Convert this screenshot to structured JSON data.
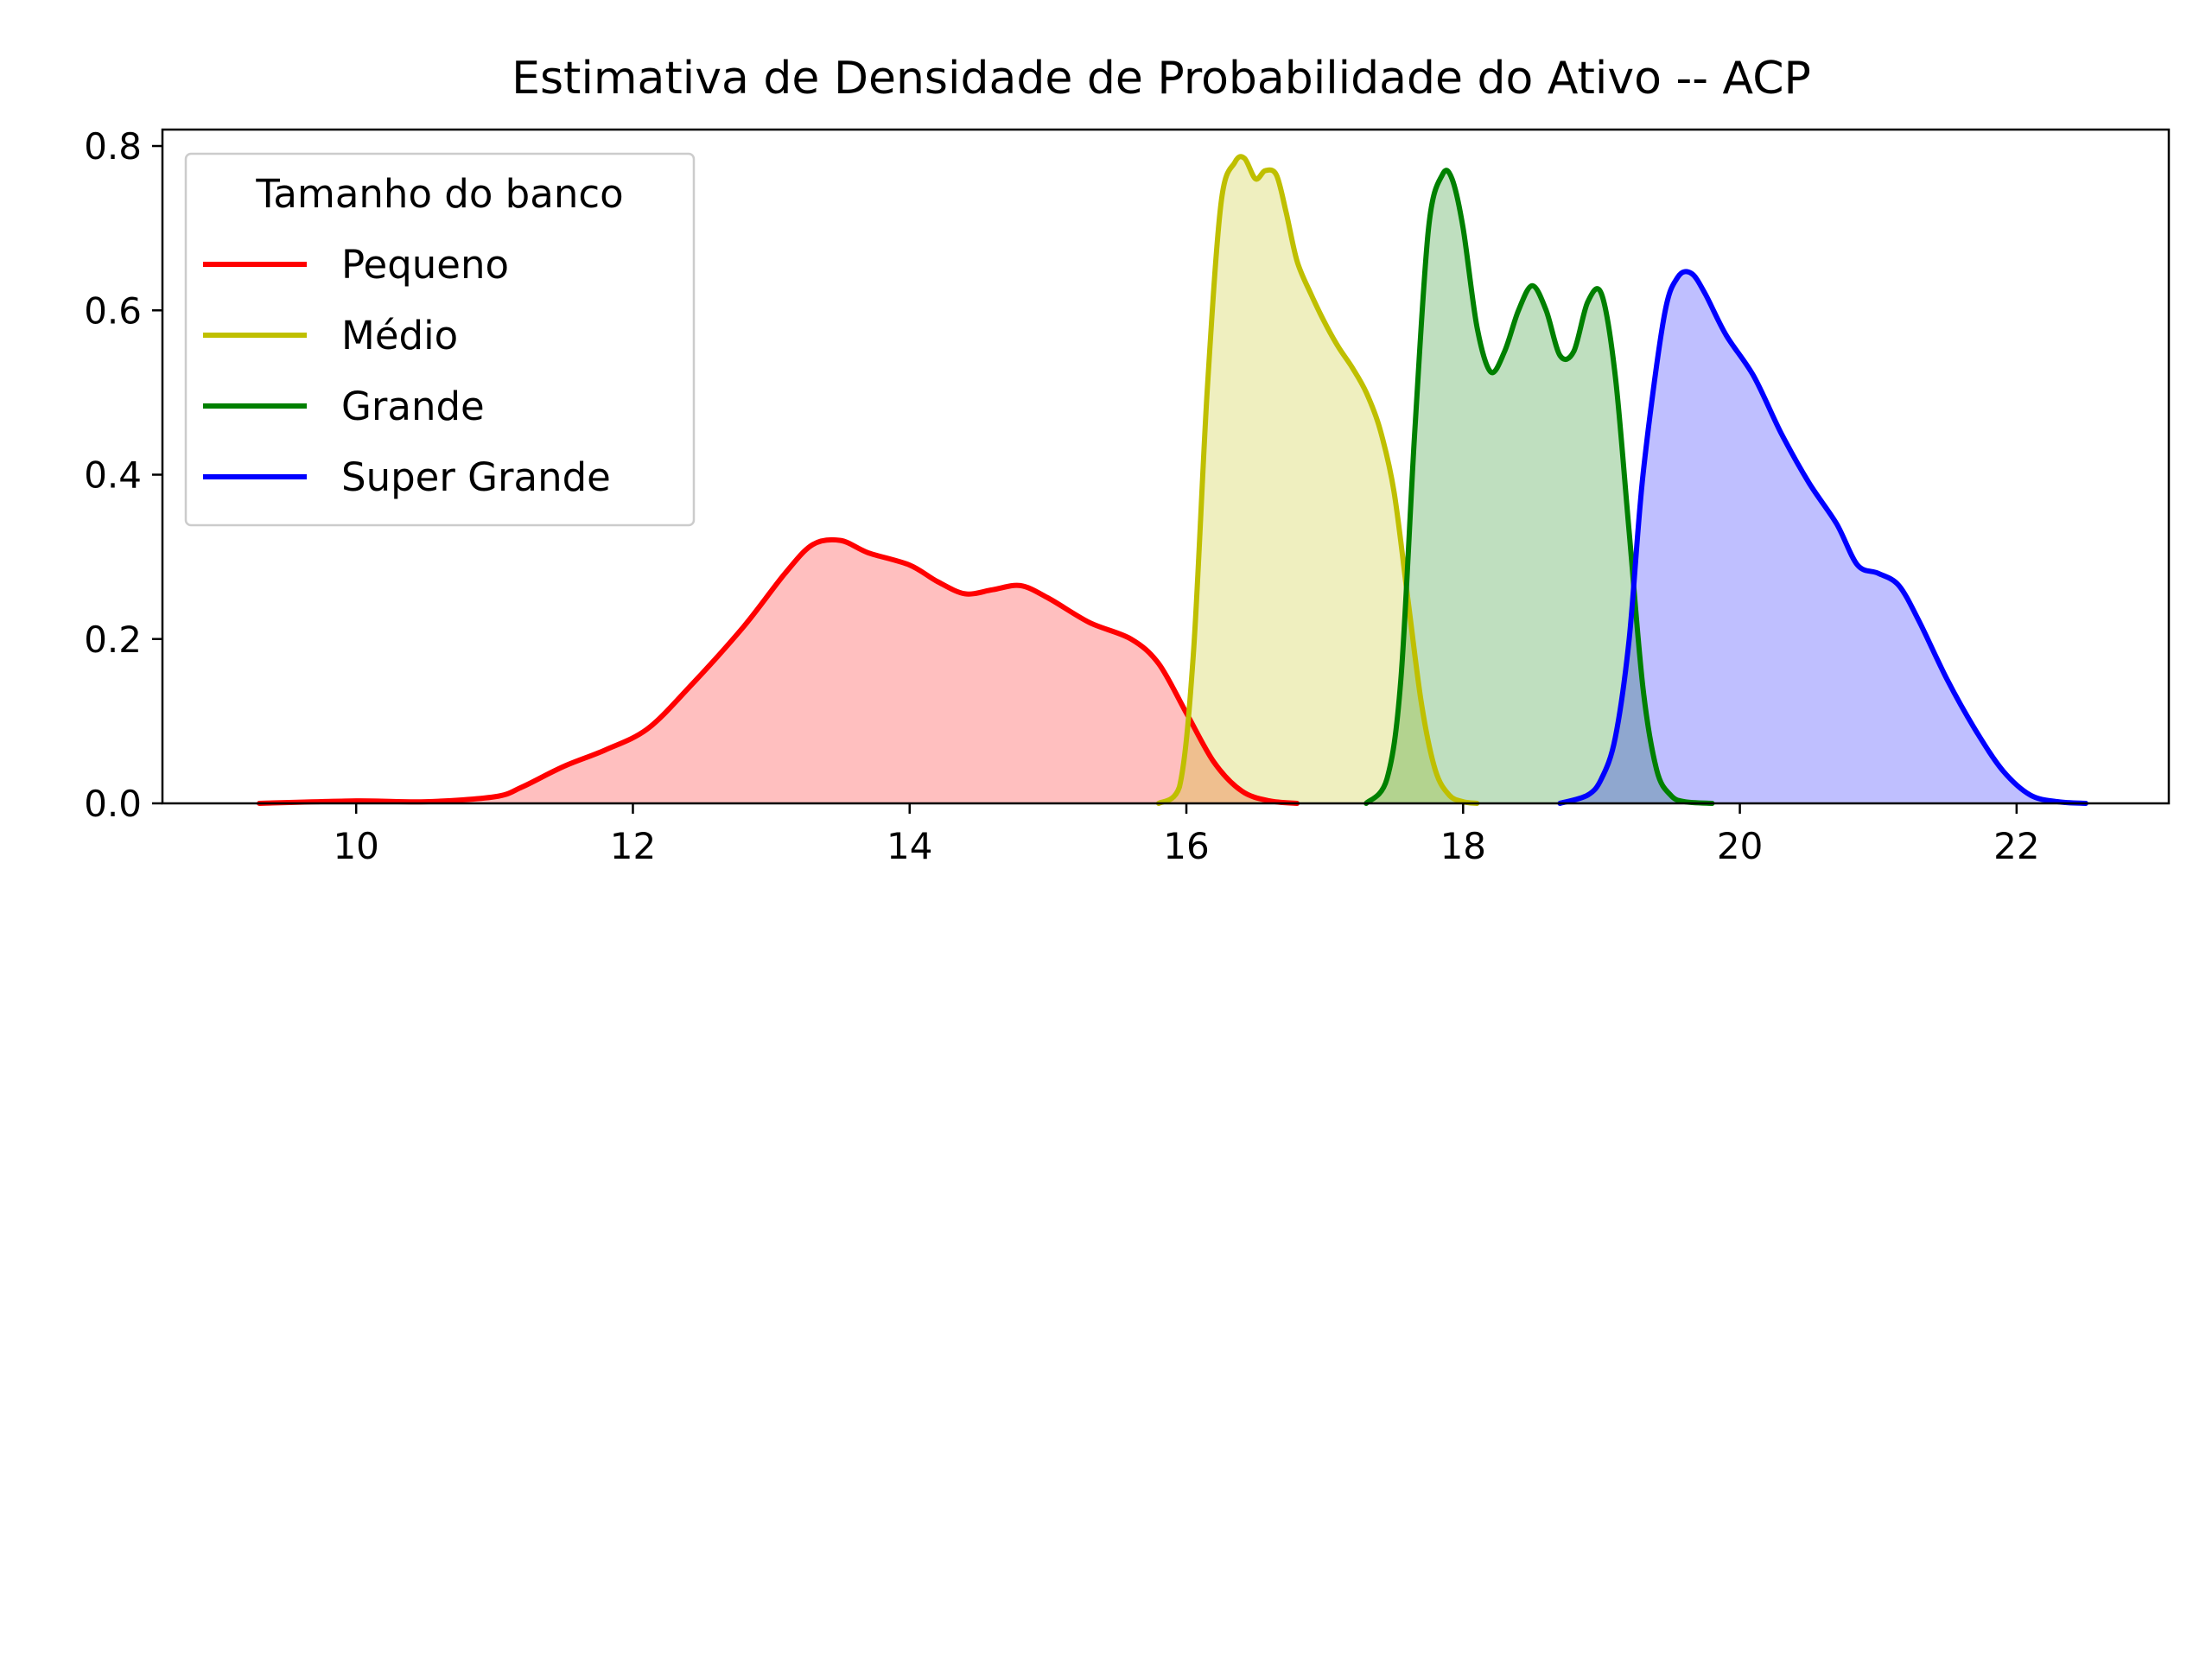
{
  "chart_data": {
    "type": "area",
    "title": "Estimativa de Densidade de Probabilidade do Ativo -- ACP",
    "xlabel": "",
    "ylabel": "",
    "xlim": [
      8.6,
      23.1
    ],
    "ylim": [
      0.0,
      0.82
    ],
    "x_ticks": [
      10,
      12,
      14,
      16,
      18,
      20,
      22
    ],
    "y_ticks": [
      0.0,
      0.2,
      0.4,
      0.6,
      0.8
    ],
    "x_tick_labels": [
      "10",
      "12",
      "14",
      "16",
      "18",
      "20",
      "22"
    ],
    "y_tick_labels": [
      "0.0",
      "0.2",
      "0.4",
      "0.6",
      "0.8"
    ],
    "grid": false,
    "legend": {
      "title": "Tamanho do banco",
      "placement": "upper-left"
    },
    "series": [
      {
        "name": "Pequeno",
        "color": "#ff0000",
        "fill": "#ffbfbf",
        "x": [
          9.3,
          10.0,
          10.5,
          11.0,
          11.2,
          11.5,
          11.8,
          12.1,
          12.4,
          12.8,
          13.1,
          13.3,
          13.5,
          13.7,
          14.0,
          14.2,
          14.4,
          14.6,
          14.8,
          15.0,
          15.3,
          15.6,
          15.8,
          16.0,
          16.2,
          16.4,
          16.6,
          16.8
        ],
        "y": [
          0.0,
          0.003,
          0.002,
          0.008,
          0.02,
          0.045,
          0.065,
          0.09,
          0.14,
          0.215,
          0.28,
          0.315,
          0.32,
          0.305,
          0.29,
          0.27,
          0.255,
          0.26,
          0.265,
          0.25,
          0.22,
          0.2,
          0.17,
          0.11,
          0.05,
          0.015,
          0.003,
          0.0
        ]
      },
      {
        "name": "Médio",
        "color": "#bfbf00",
        "fill": "#eeeebf",
        "x": [
          15.8,
          15.95,
          16.05,
          16.15,
          16.25,
          16.35,
          16.42,
          16.5,
          16.57,
          16.65,
          16.72,
          16.8,
          16.9,
          17.0,
          17.1,
          17.2,
          17.3,
          17.4,
          17.5,
          17.6,
          17.7,
          17.8,
          17.9,
          18.0,
          18.1
        ],
        "y": [
          0.0,
          0.02,
          0.18,
          0.5,
          0.73,
          0.78,
          0.785,
          0.76,
          0.77,
          0.765,
          0.72,
          0.66,
          0.62,
          0.585,
          0.555,
          0.53,
          0.5,
          0.455,
          0.38,
          0.25,
          0.12,
          0.04,
          0.01,
          0.002,
          0.0
        ]
      },
      {
        "name": "Grande",
        "color": "#008000",
        "fill": "#bfdfbf",
        "x": [
          17.3,
          17.45,
          17.55,
          17.65,
          17.75,
          17.85,
          17.92,
          18.0,
          18.1,
          18.2,
          18.3,
          18.4,
          18.5,
          18.6,
          18.7,
          18.8,
          18.9,
          19.0,
          19.1,
          19.2,
          19.3,
          19.4,
          19.5,
          19.6,
          19.8
        ],
        "y": [
          0.0,
          0.03,
          0.15,
          0.45,
          0.7,
          0.765,
          0.76,
          0.7,
          0.58,
          0.525,
          0.55,
          0.6,
          0.63,
          0.6,
          0.545,
          0.55,
          0.61,
          0.62,
          0.52,
          0.33,
          0.14,
          0.04,
          0.01,
          0.002,
          0.0
        ]
      },
      {
        "name": "Super Grande",
        "color": "#0000ff",
        "fill": "#bfbfff",
        "x": [
          18.7,
          18.9,
          19.0,
          19.1,
          19.2,
          19.3,
          19.45,
          19.55,
          19.65,
          19.75,
          19.9,
          20.1,
          20.3,
          20.5,
          20.7,
          20.85,
          21.0,
          21.15,
          21.3,
          21.5,
          21.7,
          21.9,
          22.1,
          22.3,
          22.5
        ],
        "y": [
          0.0,
          0.01,
          0.03,
          0.08,
          0.2,
          0.4,
          0.59,
          0.64,
          0.645,
          0.62,
          0.57,
          0.52,
          0.45,
          0.39,
          0.34,
          0.29,
          0.28,
          0.265,
          0.22,
          0.15,
          0.09,
          0.04,
          0.01,
          0.002,
          0.0
        ]
      }
    ]
  }
}
